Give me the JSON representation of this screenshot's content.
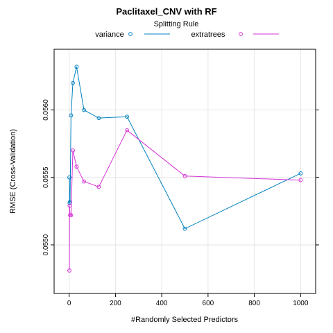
{
  "chart_data": {
    "type": "line",
    "title": "Paclitaxel_CNV with RF",
    "legend_title": "Splitting Rule",
    "legend_position": "top",
    "xlabel": "#Randomly Selected Predictors",
    "ylabel": "RMSE (Cross-Validation)",
    "xlim": [
      -65,
      1065
    ],
    "ylim": [
      0.05464,
      0.05645
    ],
    "x_ticks": [
      0,
      200,
      400,
      600,
      800,
      1000
    ],
    "y_ticks": [
      0.055,
      0.0555,
      0.056
    ],
    "y_tick_labels": [
      "0.0550",
      "0.0555",
      "0.0560"
    ],
    "grid": true,
    "series": [
      {
        "name": "variance",
        "color": "#0080c0",
        "x": [
          1,
          2,
          4,
          8,
          16,
          32,
          64,
          128,
          250,
          500,
          1000
        ],
        "y": [
          0.0555,
          0.05531,
          0.05532,
          0.05596,
          0.0562,
          0.05632,
          0.056,
          0.05594,
          0.05595,
          0.05512,
          0.05553
        ]
      },
      {
        "name": "extratrees",
        "color": "#d633d6",
        "x": [
          1,
          2,
          4,
          8,
          16,
          32,
          64,
          128,
          250,
          500,
          1000
        ],
        "y": [
          0.05481,
          0.05529,
          0.05522,
          0.05522,
          0.0557,
          0.05558,
          0.05547,
          0.05543,
          0.05585,
          0.05551,
          0.05548
        ]
      }
    ]
  }
}
